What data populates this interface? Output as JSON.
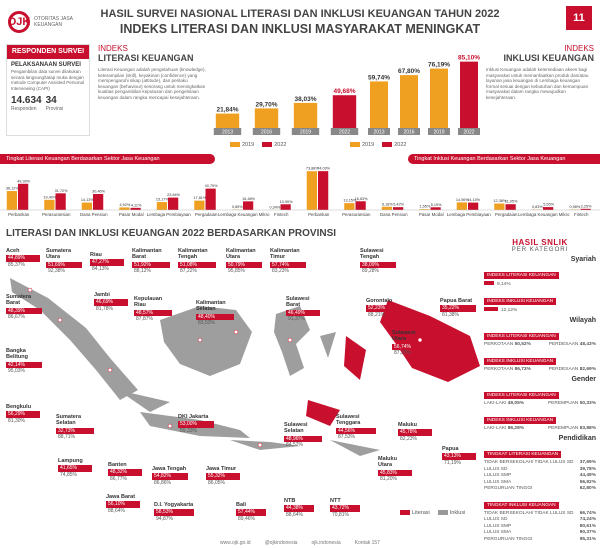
{
  "header": {
    "logo_text": "OJK",
    "logo_sub": "OTORITAS JASA KEUANGAN",
    "title": "HASIL SURVEI NASIONAL LITERASI DAN INKLUSI KEUANGAN TAHUN 2022",
    "subtitle": "INDEKS LITERASI DAN INKLUSI MASYARAKAT MENINGKAT",
    "anniv": "11"
  },
  "respondents": {
    "header": "RESPONDEN SURVEI",
    "subheader": "PELAKSANAAN SURVEI",
    "body": "Pengambilan data survei dilakukan secara langsung/tatap muka dengan metode Computer Assisted Personal Interviewing (CAPI)",
    "count": "14.634",
    "count_label": "Responden",
    "provinces": "34",
    "provinces_label": "Provinsi"
  },
  "literacy": {
    "label": "INDEKS",
    "title": "LITERASI KEUANGAN",
    "desc": "Literasi Keuangan adalah pengetahuan (knowledge), keterampilan (skill), keyakinan (confidence) yang mempengaruhi sikap (attitude), dan perilaku keuangan (behaviour) sesorang untuk meningkatkan kualitas pengambilan keputusan dan pengelolaan keuangan dalam rangka mencapai kesejahteraan."
  },
  "inclusion": {
    "label": "INDEKS",
    "title": "INKLUSI KEUANGAN",
    "desc": "Inklusi Keuangan adalah ketersediaan akses bagi masyarakat untuk memanfaatkan produk dan/atau layanan jasa keuangan di Lembaga keuangan formal sesuai dengan kebutuhan dan kemampuan masyarakat dalam rangka mewujudkan kesejahteraan."
  },
  "banner_lit": "Tingkat Literasi Keuangan Berdasarkan Sektor Jasa Keuangan",
  "banner_inc": "Tingkat Inklusi Keuangan Berdasarkan Sektor Jasa Keuangan",
  "legend": {
    "y2019": "2019",
    "y2022": "2022",
    "literasi": "Literasi",
    "inklusi": "Inklusi"
  },
  "colors": {
    "accent": "#c8102e",
    "orange": "#f0a020",
    "dark": "#555555",
    "map_gray": "#a9a9a9"
  },
  "map_title": "LITERASI DAN INKLUSI KEUANGAN 2022 BERDASARKAN PROVINSI",
  "chart_data": [
    {
      "type": "bar",
      "title": "INDEKS LITERASI KEUANGAN",
      "categories": [
        "2013",
        "2016",
        "2019",
        "2022"
      ],
      "values": [
        21.84,
        29.7,
        38.03,
        49.68
      ],
      "value_labels": [
        "21,84%",
        "29,70%",
        "38,03%",
        "49,68%"
      ]
    },
    {
      "type": "bar",
      "title": "INDEKS INKLUSI KEUANGAN",
      "categories": [
        "2013",
        "2016",
        "2019",
        "2022"
      ],
      "values": [
        59.74,
        67.8,
        76.19,
        85.1
      ],
      "value_labels": [
        "59,74%",
        "67,80%",
        "76,19%",
        "85,10%"
      ]
    },
    {
      "type": "bar",
      "title": "Tingkat Literasi Keuangan Berdasarkan Sektor Jasa Keuangan",
      "categories": [
        "Perbankan",
        "Perasuransian",
        "Dana Pensiun",
        "Pasar Modal",
        "Lembaga Pembiayaan",
        "Pergadaian",
        "Lembaga Keuangan Mikro",
        "Fintech"
      ],
      "series": [
        {
          "name": "2019",
          "values": [
            36.12,
            19.4,
            14.13,
            4.92,
            15.17,
            17.81,
            0.85,
            0.34
          ]
        },
        {
          "name": "2022",
          "values": [
            49.93,
            31.72,
            30.46,
            4.11,
            23.64,
            40.75,
            16.48,
            10.9
          ]
        }
      ],
      "value_labels_2019": [
        "36,12%",
        "19,40%",
        "14,13%",
        "4,92%",
        "15,17%",
        "17,81%",
        "0,85%",
        "0,34%"
      ],
      "value_labels_2022": [
        "49,93%",
        "31,72%",
        "30,46%",
        "4,11%",
        "23,64%",
        "40,75%",
        "16,48%",
        "10,90%"
      ]
    },
    {
      "type": "bar",
      "title": "Tingkat Inklusi Keuangan Berdasarkan Sektor Jasa Keuangan",
      "categories": [
        "Perbankan",
        "Perasuransian",
        "Dana Pensiun",
        "Pasar Modal",
        "Lembaga Pembiayaan",
        "Pergadaian",
        "Lembaga Keuangan Mikro",
        "Fintech"
      ],
      "series": [
        {
          "name": "2019",
          "values": [
            73.88,
            13.15,
            6.18,
            1.55,
            14.56,
            12.38,
            0.83,
            0.98
          ]
        },
        {
          "name": "2022",
          "values": [
            74.03,
            16.63,
            5.42,
            5.19,
            14.13,
            11.05,
            5.55,
            2.25
          ]
        }
      ],
      "value_labels_2019": [
        "73,88%",
        "13,15%",
        "6,18%",
        "1,55%",
        "14,56%",
        "12,38%",
        "0,83%",
        "0,98%"
      ],
      "value_labels_2022": [
        "74,03%",
        "16,63%",
        "5,42%",
        "5,19%",
        "14,13%",
        "11,05%",
        "5,55%",
        "2,25%"
      ]
    }
  ],
  "provinces": [
    {
      "name": "Aceh",
      "lit": "44,89%",
      "inc": "85,37%"
    },
    {
      "name": "Sumatera Utara",
      "lit": "51,69%",
      "inc": "92,38%"
    },
    {
      "name": "Riau",
      "lit": "47,27%",
      "inc": "84,13%"
    },
    {
      "name": "Kalimantan Barat",
      "lit": "51,92%",
      "inc": "88,12%"
    },
    {
      "name": "Kalimantan Tengah",
      "lit": "51,08%",
      "inc": "87,22%"
    },
    {
      "name": "Kalimantan Utara",
      "lit": "50,79%",
      "inc": "95,85%"
    },
    {
      "name": "Kalimantan Timur",
      "lit": "57,74%",
      "inc": "83,23%"
    },
    {
      "name": "Sulawesi Tengah",
      "lit": "38,09%",
      "inc": "89,28%"
    },
    {
      "name": "Sumatera Barat",
      "lit": "48,39%",
      "inc": "86,67%"
    },
    {
      "name": "Jambi",
      "lit": "46,69%",
      "inc": "81,78%"
    },
    {
      "name": "Kepulauan Riau",
      "lit": "48,57%",
      "inc": "87,87%"
    },
    {
      "name": "Kalimantan Selatan",
      "lit": "48,40%",
      "inc": "83,53%"
    },
    {
      "name": "Sulawesi Barat",
      "lit": "46,49%",
      "inc": "91,37%"
    },
    {
      "name": "Gorontalo",
      "lit": "52,23%",
      "inc": "88,21%"
    },
    {
      "name": "Papua Barat",
      "lit": "35,22%",
      "inc": "81,38%"
    },
    {
      "name": "Bangka Belitung",
      "lit": "42,14%",
      "inc": "95,03%"
    },
    {
      "name": "Sulawesi Utara",
      "lit": "56,74%",
      "inc": "87,33%"
    },
    {
      "name": "Bengkulu",
      "lit": "56,29%",
      "inc": "81,30%"
    },
    {
      "name": "Sumatera Selatan",
      "lit": "32,73%",
      "inc": "88,71%"
    },
    {
      "name": "DKI Jakarta",
      "lit": "53,00%",
      "inc": "89,33%"
    },
    {
      "name": "Sulawesi Selatan",
      "lit": "48,96%",
      "inc": "84,52%"
    },
    {
      "name": "Sulawesi Tenggara",
      "lit": "44,56%",
      "inc": "87,53%"
    },
    {
      "name": "Maluku",
      "lit": "45,78%",
      "inc": "82,23%"
    },
    {
      "name": "Maluku Utara",
      "lit": "45,83%",
      "inc": "81,20%"
    },
    {
      "name": "Papua",
      "lit": "43,13%",
      "inc": "71,19%"
    },
    {
      "name": "Lampung",
      "lit": "41,65%",
      "inc": "74,85%"
    },
    {
      "name": "Banten",
      "lit": "48,32%",
      "inc": "86,77%"
    },
    {
      "name": "Jawa Tengah",
      "lit": "54,82%",
      "inc": "86,86%"
    },
    {
      "name": "Jawa Timur",
      "lit": "55,32%",
      "inc": "86,05%"
    },
    {
      "name": "Jawa Barat",
      "lit": "56,10%",
      "inc": "88,64%"
    },
    {
      "name": "D.I. Yogyakarta",
      "lit": "58,53%",
      "inc": "94,87%"
    },
    {
      "name": "Bali",
      "lit": "57,44%",
      "inc": "89,46%"
    },
    {
      "name": "NTB",
      "lit": "44,38%",
      "inc": "88,64%"
    },
    {
      "name": "NTT",
      "lit": "43,72%",
      "inc": "70,81%"
    }
  ],
  "side": {
    "heading": "HASIL SNLIK",
    "subheading": "PER KATEGORI",
    "syariah": {
      "title": "Syariah",
      "rows": [
        {
          "label": "INDEKS LITERASI KEUANGAN",
          "value": "9,14%",
          "frac": 0.09
        },
        {
          "label": "INDEKS INKLUSI KEUANGAN",
          "value": "12,12%",
          "frac": 0.12
        }
      ]
    },
    "wilayah": {
      "title": "Wilayah",
      "lit_label": "INDEKS LITERASI KEUANGAN",
      "lit": [
        {
          "label": "PERKOTAAN",
          "value": "50,52%"
        },
        {
          "label": "PERDESAAN",
          "value": "48,43%"
        }
      ],
      "inc_label": "INDEKS INKLUSI KEUANGAN",
      "inc": [
        {
          "label": "PERKOTAAN",
          "value": "86,73%"
        },
        {
          "label": "PERDESAAN",
          "value": "82,69%"
        }
      ]
    },
    "gender": {
      "title": "Gender",
      "lit_label": "INDEKS LITERASI KEUANGAN",
      "lit": [
        {
          "label": "LAKI-LAKI",
          "value": "49,05%"
        },
        {
          "label": "PEREMPUAN",
          "value": "50,33%"
        }
      ],
      "inc_label": "INDEKS INKLUSI KEUANGAN",
      "inc": [
        {
          "label": "LAKI-LAKI",
          "value": "86,28%"
        },
        {
          "label": "PEREMPUAN",
          "value": "83,88%"
        }
      ]
    },
    "pendidikan": {
      "title": "Pendidikan",
      "lit_label": "TINGKAT LITERASI KEUANGAN",
      "lit": [
        {
          "label": "TIDAK BERSEKOLAH/ TIDAK LULUS SD",
          "value": "37,69%"
        },
        {
          "label": "LULUS SD",
          "value": "39,78%"
        },
        {
          "label": "LULUS SMP",
          "value": "44,49%"
        },
        {
          "label": "LULUS SMA",
          "value": "56,92%"
        },
        {
          "label": "PERGURUAN TINGGI",
          "value": "62,80%"
        }
      ],
      "inc_label": "TINGKAT INKLUSI KEUANGAN",
      "inc": [
        {
          "label": "TIDAK BERSEKOLAH/ TIDAK LULUS SD",
          "value": "66,74%"
        },
        {
          "label": "LULUS SD",
          "value": "74,24%"
        },
        {
          "label": "LULUS SMP",
          "value": "80,61%"
        },
        {
          "label": "LULUS SMA",
          "value": "90,37%"
        },
        {
          "label": "PERGURUAN TINGGI",
          "value": "95,31%"
        }
      ]
    }
  },
  "footer": [
    "www.ojk.go.id",
    "@ojkindonesia",
    "ojk.indonesia",
    "Kontak 157"
  ]
}
